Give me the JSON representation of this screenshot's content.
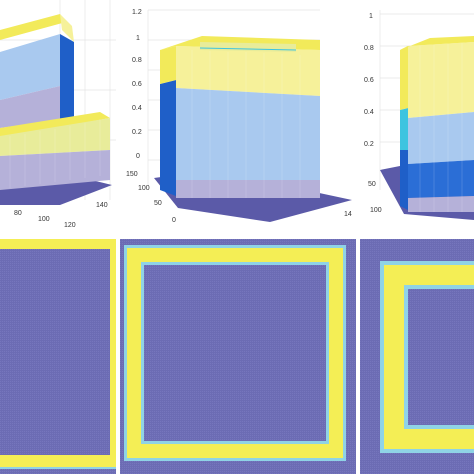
{
  "colors": {
    "background": "#ffffff",
    "grid": "#e4e4e4",
    "floor": "#5b5aa8",
    "yellow": "#f2ea5a",
    "yellow_light": "#f6f19a",
    "light_blue": "#a9c9ef",
    "light_purple": "#b5b1d9",
    "dark_blue": "#1f5fc8",
    "royal_blue": "#2b6ed6",
    "cyan": "#3dc4e0",
    "pale_yellow": "#e8ec9a",
    "map_purple": "#6c6cb4",
    "map_yellow": "#f4ee55",
    "map_cyan": "#8fd3e6"
  },
  "top_row": [
    {
      "id": "surface-1",
      "x_ticks": [
        "80",
        "100",
        "120",
        "140"
      ],
      "y_ticks": []
    },
    {
      "id": "surface-2",
      "z_ticks": [
        "1.2",
        "1",
        "0.8",
        "0.6",
        "0.4",
        "0.2",
        "0"
      ],
      "y_ticks": [
        "150",
        "100",
        "50",
        "0"
      ],
      "x_ticks": [
        "14"
      ]
    },
    {
      "id": "surface-3",
      "z_ticks": [
        "1",
        "0.8",
        "0.6",
        "0.4",
        "0.2"
      ],
      "y_ticks": [
        "50",
        "100"
      ]
    }
  ],
  "bottom_row": [
    {
      "id": "map-1",
      "frame": "wide"
    },
    {
      "id": "map-2",
      "frame": "medium"
    },
    {
      "id": "map-3",
      "frame": "inner"
    }
  ]
}
